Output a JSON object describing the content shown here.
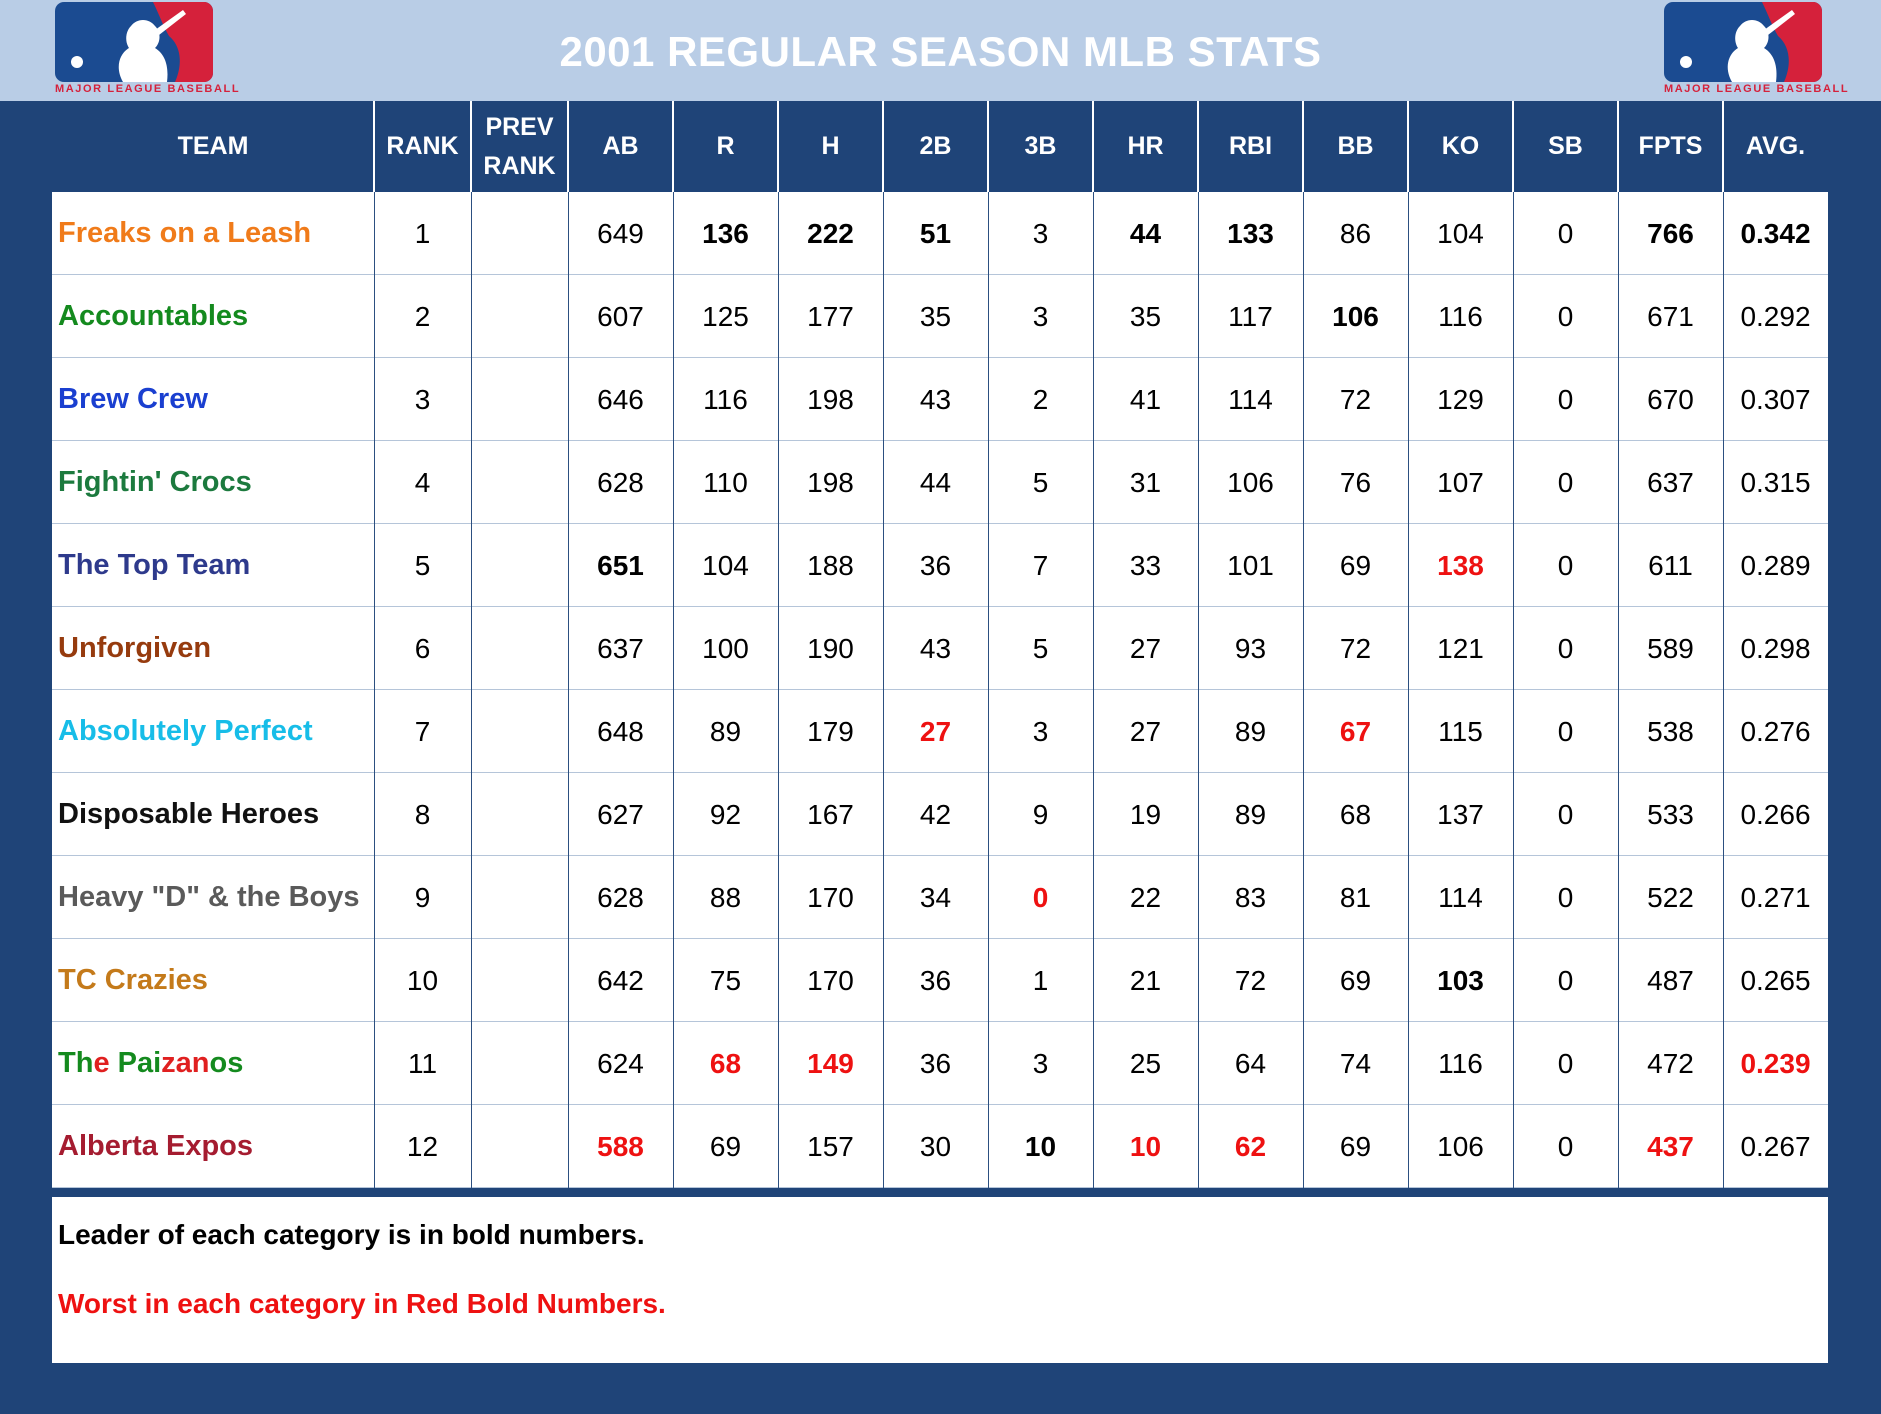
{
  "title": "2001 REGULAR SEASON MLB STATS",
  "logo": {
    "text": "MAJOR LEAGUE BASEBALL",
    "icon": "mlb-logo-icon",
    "blue": "#1b4b91",
    "red": "#d5213b"
  },
  "colors": {
    "worst": "#ee1111",
    "background": "#1f4478",
    "header_band": "#b9cde6"
  },
  "columns": [
    {
      "key": "team",
      "label": "TEAM"
    },
    {
      "key": "rank",
      "label": "RANK"
    },
    {
      "key": "prev_rank",
      "label": "PREV RANK"
    },
    {
      "key": "ab",
      "label": "AB"
    },
    {
      "key": "r",
      "label": "R"
    },
    {
      "key": "h",
      "label": "H"
    },
    {
      "key": "2b",
      "label": "2B"
    },
    {
      "key": "3b",
      "label": "3B"
    },
    {
      "key": "hr",
      "label": "HR"
    },
    {
      "key": "rbi",
      "label": "RBI"
    },
    {
      "key": "bb",
      "label": "BB"
    },
    {
      "key": "ko",
      "label": "KO"
    },
    {
      "key": "sb",
      "label": "SB"
    },
    {
      "key": "fpts",
      "label": "FPTS"
    },
    {
      "key": "avg",
      "label": "AVG."
    }
  ],
  "rows": [
    {
      "team": "Freaks on a Leash",
      "color": "#f07b1a",
      "rank": "1",
      "prev_rank": "",
      "ab": "649",
      "r": "136",
      "h": "222",
      "2b": "51",
      "3b": "3",
      "hr": "44",
      "rbi": "133",
      "bb": "86",
      "ko": "104",
      "sb": "0",
      "fpts": "766",
      "avg": "0.342",
      "bold": [
        "r",
        "h",
        "2b",
        "hr",
        "rbi",
        "fpts",
        "avg"
      ],
      "worst": []
    },
    {
      "team": "Accountables",
      "color": "#148a1e",
      "rank": "2",
      "prev_rank": "",
      "ab": "607",
      "r": "125",
      "h": "177",
      "2b": "35",
      "3b": "3",
      "hr": "35",
      "rbi": "117",
      "bb": "106",
      "ko": "116",
      "sb": "0",
      "fpts": "671",
      "avg": "0.292",
      "bold": [
        "bb"
      ],
      "worst": []
    },
    {
      "team": "Brew Crew",
      "color": "#1a3fd0",
      "rank": "3",
      "prev_rank": "",
      "ab": "646",
      "r": "116",
      "h": "198",
      "2b": "43",
      "3b": "2",
      "hr": "41",
      "rbi": "114",
      "bb": "72",
      "ko": "129",
      "sb": "0",
      "fpts": "670",
      "avg": "0.307",
      "bold": [],
      "worst": []
    },
    {
      "team": "Fightin' Crocs",
      "color": "#1c7a3e",
      "rank": "4",
      "prev_rank": "",
      "ab": "628",
      "r": "110",
      "h": "198",
      "2b": "44",
      "3b": "5",
      "hr": "31",
      "rbi": "106",
      "bb": "76",
      "ko": "107",
      "sb": "0",
      "fpts": "637",
      "avg": "0.315",
      "bold": [],
      "worst": []
    },
    {
      "team": "The Top Team",
      "color": "#2e3a8c",
      "rank": "5",
      "prev_rank": "",
      "ab": "651",
      "r": "104",
      "h": "188",
      "2b": "36",
      "3b": "7",
      "hr": "33",
      "rbi": "101",
      "bb": "69",
      "ko": "138",
      "sb": "0",
      "fpts": "611",
      "avg": "0.289",
      "bold": [
        "ab"
      ],
      "worst": [
        "ko"
      ]
    },
    {
      "team": "Unforgiven",
      "color": "#963b0e",
      "rank": "6",
      "prev_rank": "",
      "ab": "637",
      "r": "100",
      "h": "190",
      "2b": "43",
      "3b": "5",
      "hr": "27",
      "rbi": "93",
      "bb": "72",
      "ko": "121",
      "sb": "0",
      "fpts": "589",
      "avg": "0.298",
      "bold": [],
      "worst": []
    },
    {
      "team": "Absolutely Perfect",
      "color": "#17bde8",
      "rank": "7",
      "prev_rank": "",
      "ab": "648",
      "r": "89",
      "h": "179",
      "2b": "27",
      "3b": "3",
      "hr": "27",
      "rbi": "89",
      "bb": "67",
      "ko": "115",
      "sb": "0",
      "fpts": "538",
      "avg": "0.276",
      "bold": [],
      "worst": [
        "2b",
        "bb"
      ]
    },
    {
      "team": "Disposable Heroes",
      "color": "#111111",
      "rank": "8",
      "prev_rank": "",
      "ab": "627",
      "r": "92",
      "h": "167",
      "2b": "42",
      "3b": "9",
      "hr": "19",
      "rbi": "89",
      "bb": "68",
      "ko": "137",
      "sb": "0",
      "fpts": "533",
      "avg": "0.266",
      "bold": [],
      "worst": []
    },
    {
      "team": "Heavy \"D\" & the Boys",
      "color": "#5a5a5a",
      "rank": "9",
      "prev_rank": "",
      "ab": "628",
      "r": "88",
      "h": "170",
      "2b": "34",
      "3b": "0",
      "hr": "22",
      "rbi": "83",
      "bb": "81",
      "ko": "114",
      "sb": "0",
      "fpts": "522",
      "avg": "0.271",
      "bold": [],
      "worst": [
        "3b"
      ]
    },
    {
      "team": "TC Crazies",
      "color": "#c47a1a",
      "rank": "10",
      "prev_rank": "",
      "ab": "642",
      "r": "75",
      "h": "170",
      "2b": "36",
      "3b": "1",
      "hr": "21",
      "rbi": "72",
      "bb": "69",
      "ko": "103",
      "sb": "0",
      "fpts": "487",
      "avg": "0.265",
      "bold": [
        "ko"
      ],
      "worst": []
    },
    {
      "team": "The Paizanos",
      "color": "#148a1e",
      "rank": "11",
      "prev_rank": "",
      "ab": "624",
      "r": "68",
      "h": "149",
      "2b": "36",
      "3b": "3",
      "hr": "25",
      "rbi": "64",
      "bb": "74",
      "ko": "116",
      "sb": "0",
      "fpts": "472",
      "avg": "0.239",
      "bold": [],
      "worst": [
        "r",
        "h",
        "avg"
      ],
      "team_parts": [
        {
          "t": "Th",
          "c": "#148a1e"
        },
        {
          "t": "e ",
          "c": "#e02020"
        },
        {
          "t": "Pai",
          "c": "#148a1e"
        },
        {
          "t": "zan",
          "c": "#e02020"
        },
        {
          "t": "os",
          "c": "#148a1e"
        }
      ]
    },
    {
      "team": "Alberta Expos",
      "color": "#a51c30",
      "rank": "12",
      "prev_rank": "",
      "ab": "588",
      "r": "69",
      "h": "157",
      "2b": "30",
      "3b": "10",
      "hr": "10",
      "rbi": "62",
      "bb": "69",
      "ko": "106",
      "sb": "0",
      "fpts": "437",
      "avg": "0.267",
      "bold": [
        "3b"
      ],
      "worst": [
        "ab",
        "hr",
        "rbi",
        "fpts"
      ]
    }
  ],
  "notes": {
    "leader": "Leader of each category is in bold numbers.",
    "worst": "Worst in each category in Red Bold Numbers."
  }
}
